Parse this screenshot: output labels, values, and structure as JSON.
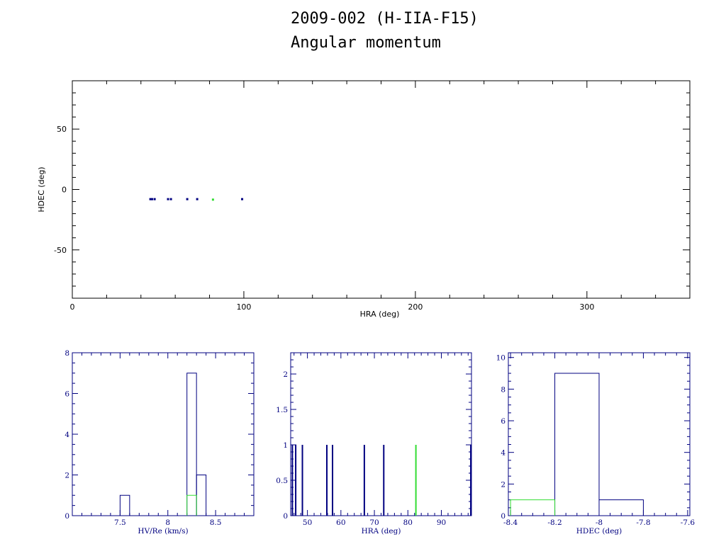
{
  "title": "2009-002 (H-IIA-F15)",
  "subtitle": "Angular momentum",
  "colors": {
    "frame": "#000000",
    "blue": "#000080",
    "green": "#33dd33"
  },
  "chart_data": [
    {
      "type": "scatter",
      "xlabel": "HRA (deg)",
      "ylabel": "HDEC (deg)",
      "xlim": [
        0,
        360
      ],
      "ylim": [
        -90,
        90
      ],
      "xticks": [
        0,
        100,
        200,
        300
      ],
      "yticks": [
        -50,
        0,
        50
      ],
      "series": [
        {
          "color": "#000080",
          "x": [
            45.5,
            46.5,
            48,
            55.8,
            57.5,
            67,
            72.8,
            99
          ],
          "y": [
            -8,
            -8,
            -8,
            -8,
            -8,
            -8,
            -8,
            -8
          ]
        },
        {
          "color": "#33dd33",
          "x": [
            82
          ],
          "y": [
            -8.4
          ]
        }
      ]
    },
    {
      "type": "bar",
      "xlabel": "HV/Re (km/s)",
      "xlim": [
        7.0,
        8.9
      ],
      "ylim": [
        0,
        8
      ],
      "xticks": [
        7.5,
        8,
        8.5
      ],
      "xtick_labels": [
        "7.5",
        "8",
        "8.5"
      ],
      "yticks": [
        0,
        2,
        4,
        6,
        8
      ],
      "series": [
        {
          "color": "#000080",
          "bins": [
            [
              7.5,
              7.6,
              1
            ],
            [
              8.2,
              8.3,
              7
            ],
            [
              8.3,
              8.4,
              2
            ]
          ]
        },
        {
          "color": "#33dd33",
          "bins": [
            [
              8.2,
              8.3,
              1
            ]
          ]
        }
      ]
    },
    {
      "type": "bar",
      "xlabel": "HRA (deg)",
      "xlim": [
        45,
        99
      ],
      "ylim": [
        0,
        2.3
      ],
      "xticks": [
        50,
        60,
        70,
        80,
        90
      ],
      "xtick_labels": [
        "50",
        "60",
        "70",
        "80",
        "90"
      ],
      "yticks": [
        0,
        0.5,
        1,
        1.5,
        2
      ],
      "ytick_labels": [
        "0",
        "0.5",
        "1",
        "1.5",
        "2"
      ],
      "series": [
        {
          "color": "#000080",
          "spikes": [
            [
              45.5,
              1
            ],
            [
              46.5,
              1
            ],
            [
              48.5,
              1
            ],
            [
              55.8,
              1
            ],
            [
              57.5,
              1
            ],
            [
              67,
              1
            ],
            [
              72.8,
              1
            ],
            [
              98.8,
              1
            ]
          ]
        },
        {
          "color": "#33dd33",
          "spikes": [
            [
              82.4,
              1
            ]
          ]
        }
      ]
    },
    {
      "type": "bar",
      "xlabel": "HDEC (deg)",
      "xlim": [
        -8.41,
        -7.59
      ],
      "ylim": [
        0,
        10.3
      ],
      "xticks": [
        -8.4,
        -8.2,
        -8,
        -7.8,
        -7.6
      ],
      "xtick_labels": [
        "-8.4",
        "-8.2",
        "-8",
        "-7.8",
        "-7.6"
      ],
      "yticks": [
        0,
        2,
        4,
        6,
        8,
        10
      ],
      "series": [
        {
          "color": "#000080",
          "bins": [
            [
              -8.2,
              -8.0,
              9
            ],
            [
              -8.0,
              -7.8,
              1
            ]
          ]
        },
        {
          "color": "#33dd33",
          "bins": [
            [
              -8.4,
              -8.2,
              1
            ]
          ]
        }
      ]
    }
  ]
}
